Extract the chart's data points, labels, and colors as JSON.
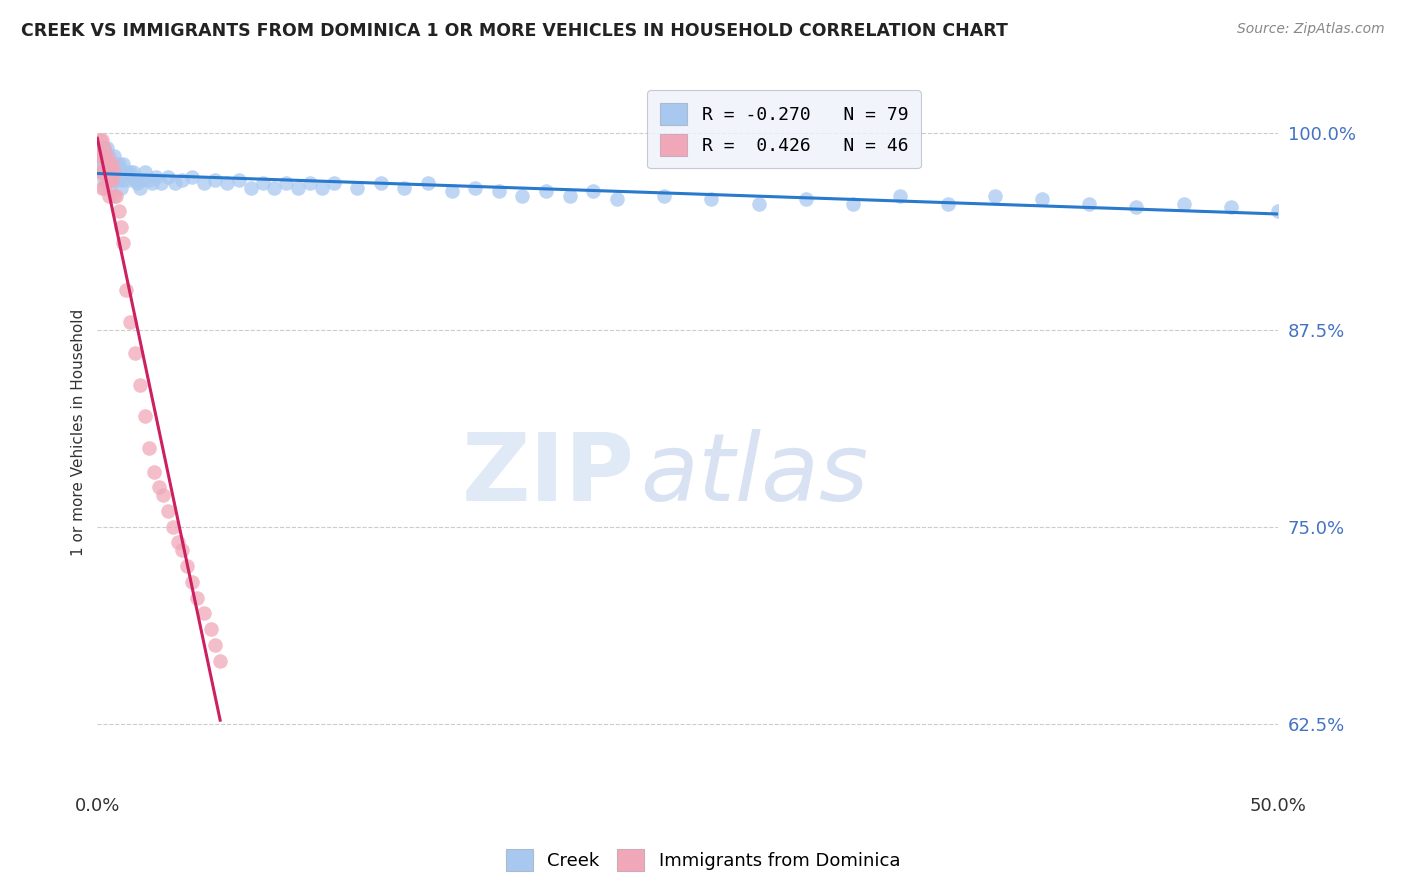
{
  "title": "CREEK VS IMMIGRANTS FROM DOMINICA 1 OR MORE VEHICLES IN HOUSEHOLD CORRELATION CHART",
  "source": "Source: ZipAtlas.com",
  "ylabel": "1 or more Vehicles in Household",
  "ytick_labels": [
    "100.0%",
    "87.5%",
    "75.0%",
    "62.5%"
  ],
  "ytick_values": [
    1.0,
    0.875,
    0.75,
    0.625
  ],
  "creek_color": "#a8c8f0",
  "creek_line_color": "#2979cc",
  "dominica_color": "#f0a8b8",
  "dominica_line_color": "#cc2060",
  "xmin": 0.0,
  "xmax": 0.5,
  "ymin": 0.585,
  "ymax": 1.035,
  "creek_x": [
    0.001,
    0.001,
    0.002,
    0.002,
    0.003,
    0.003,
    0.003,
    0.004,
    0.004,
    0.005,
    0.005,
    0.005,
    0.006,
    0.006,
    0.007,
    0.007,
    0.008,
    0.008,
    0.009,
    0.009,
    0.01,
    0.01,
    0.011,
    0.011,
    0.012,
    0.013,
    0.014,
    0.015,
    0.016,
    0.017,
    0.018,
    0.019,
    0.02,
    0.022,
    0.023,
    0.025,
    0.027,
    0.03,
    0.033,
    0.036,
    0.04,
    0.045,
    0.05,
    0.055,
    0.06,
    0.065,
    0.07,
    0.075,
    0.08,
    0.085,
    0.09,
    0.095,
    0.1,
    0.11,
    0.12,
    0.13,
    0.14,
    0.15,
    0.16,
    0.17,
    0.18,
    0.19,
    0.2,
    0.21,
    0.22,
    0.24,
    0.26,
    0.28,
    0.3,
    0.32,
    0.34,
    0.36,
    0.38,
    0.4,
    0.42,
    0.44,
    0.46,
    0.48,
    0.5
  ],
  "creek_y": [
    0.99,
    0.98,
    0.985,
    0.975,
    0.99,
    0.98,
    0.97,
    0.99,
    0.975,
    0.985,
    0.975,
    0.965,
    0.98,
    0.97,
    0.985,
    0.97,
    0.98,
    0.97,
    0.98,
    0.97,
    0.975,
    0.965,
    0.98,
    0.97,
    0.975,
    0.97,
    0.975,
    0.975,
    0.97,
    0.968,
    0.965,
    0.97,
    0.975,
    0.97,
    0.968,
    0.972,
    0.968,
    0.972,
    0.968,
    0.97,
    0.972,
    0.968,
    0.97,
    0.968,
    0.97,
    0.965,
    0.968,
    0.965,
    0.968,
    0.965,
    0.968,
    0.965,
    0.968,
    0.965,
    0.968,
    0.965,
    0.968,
    0.963,
    0.965,
    0.963,
    0.96,
    0.963,
    0.96,
    0.963,
    0.958,
    0.96,
    0.958,
    0.955,
    0.958,
    0.955,
    0.96,
    0.955,
    0.96,
    0.958,
    0.955,
    0.953,
    0.955,
    0.953,
    0.95
  ],
  "dominica_x": [
    0.0005,
    0.001,
    0.001,
    0.001,
    0.002,
    0.002,
    0.002,
    0.002,
    0.003,
    0.003,
    0.003,
    0.003,
    0.004,
    0.004,
    0.004,
    0.005,
    0.005,
    0.005,
    0.006,
    0.006,
    0.007,
    0.007,
    0.008,
    0.009,
    0.01,
    0.011,
    0.012,
    0.014,
    0.016,
    0.018,
    0.02,
    0.022,
    0.024,
    0.026,
    0.028,
    0.03,
    0.032,
    0.034,
    0.036,
    0.038,
    0.04,
    0.042,
    0.045,
    0.048,
    0.05,
    0.052
  ],
  "dominica_y": [
    0.99,
    0.995,
    0.985,
    0.975,
    0.985,
    0.975,
    0.965,
    0.995,
    0.985,
    0.975,
    0.965,
    0.99,
    0.98,
    0.97,
    0.985,
    0.98,
    0.97,
    0.96,
    0.98,
    0.97,
    0.96,
    0.975,
    0.96,
    0.95,
    0.94,
    0.93,
    0.9,
    0.88,
    0.86,
    0.84,
    0.82,
    0.8,
    0.785,
    0.775,
    0.77,
    0.76,
    0.75,
    0.74,
    0.735,
    0.725,
    0.715,
    0.705,
    0.695,
    0.685,
    0.675,
    0.665
  ],
  "watermark_zip": "ZIP",
  "watermark_atlas": "atlas",
  "background_color": "#ffffff"
}
